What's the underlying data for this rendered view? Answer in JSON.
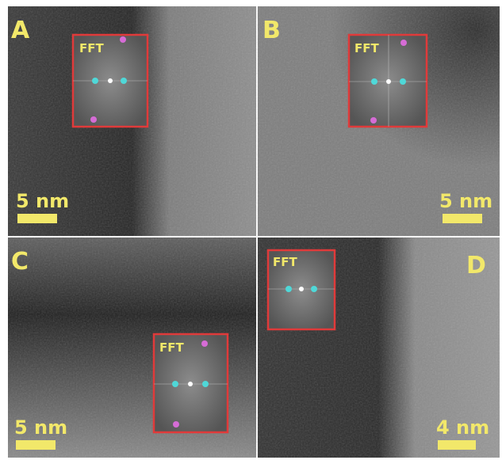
{
  "panels": [
    {
      "label": "A",
      "fft": "FFT",
      "scale": "5 nm"
    },
    {
      "label": "B",
      "fft": "FFT",
      "scale": "5 nm"
    },
    {
      "label": "C",
      "fft": "FFT",
      "scale": "5 nm"
    },
    {
      "label": "D",
      "fft": "FFT",
      "scale": "4 nm"
    }
  ]
}
